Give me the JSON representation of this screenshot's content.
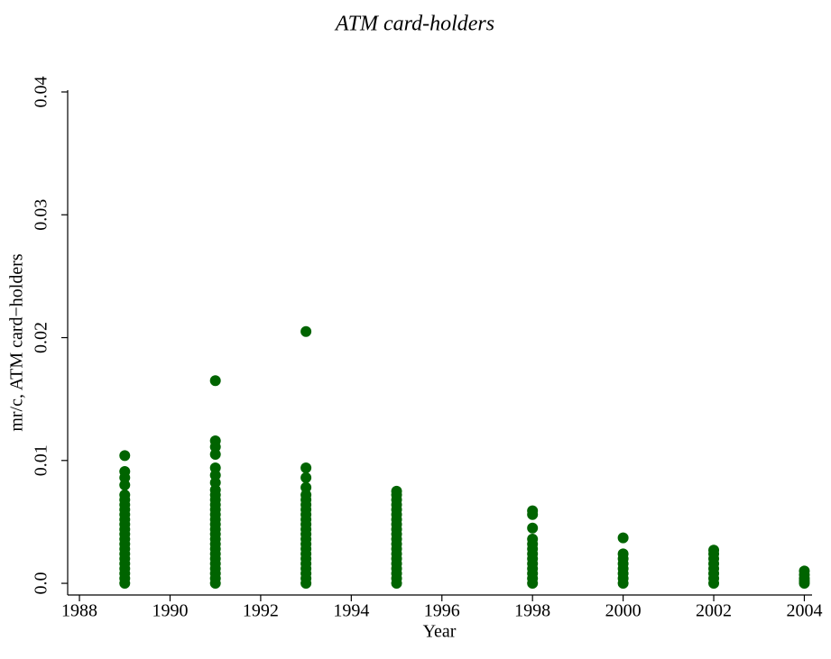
{
  "chart_data": {
    "type": "scatter",
    "title": "ATM card-holders",
    "xlabel": "Year",
    "ylabel": "mr/c, ATM card−holders",
    "color": "#006400",
    "x": [
      1989,
      1989,
      1989,
      1989,
      1989,
      1989,
      1989,
      1989,
      1989,
      1989,
      1989,
      1989,
      1989,
      1989,
      1989,
      1989,
      1989,
      1989,
      1989,
      1989,
      1989,
      1989,
      1989,
      1991,
      1991,
      1991,
      1991,
      1991,
      1991,
      1991,
      1991,
      1991,
      1991,
      1991,
      1991,
      1991,
      1991,
      1991,
      1991,
      1991,
      1991,
      1991,
      1991,
      1991,
      1991,
      1991,
      1991,
      1991,
      1991,
      1991,
      1993,
      1993,
      1993,
      1993,
      1993,
      1993,
      1993,
      1993,
      1993,
      1993,
      1993,
      1993,
      1993,
      1993,
      1993,
      1993,
      1993,
      1993,
      1993,
      1993,
      1993,
      1993,
      1993,
      1995,
      1995,
      1995,
      1995,
      1995,
      1995,
      1995,
      1995,
      1995,
      1995,
      1995,
      1995,
      1995,
      1995,
      1995,
      1995,
      1995,
      1995,
      1995,
      1995,
      1998,
      1998,
      1998,
      1998,
      1998,
      1998,
      1998,
      1998,
      1998,
      1998,
      1998,
      1998,
      1998,
      2000,
      2000,
      2000,
      2000,
      2000,
      2000,
      2000,
      2000,
      2002,
      2002,
      2002,
      2002,
      2002,
      2002,
      2002,
      2002,
      2004,
      2004,
      2004,
      2004,
      2004
    ],
    "values": [
      0,
      0.0004,
      0.0008,
      0.0012,
      0.0016,
      0.002,
      0.0024,
      0.0028,
      0.0032,
      0.0036,
      0.004,
      0.0044,
      0.0048,
      0.0052,
      0.0056,
      0.006,
      0.0064,
      0.0068,
      0.0072,
      0.008,
      0.0086,
      0.0091,
      0.0104,
      0,
      0.0004,
      0.0008,
      0.0012,
      0.0016,
      0.002,
      0.0024,
      0.0028,
      0.0032,
      0.0036,
      0.004,
      0.0044,
      0.0048,
      0.0052,
      0.0056,
      0.006,
      0.0064,
      0.0068,
      0.0072,
      0.0076,
      0.0082,
      0.0088,
      0.0094,
      0.0105,
      0.0111,
      0.0116,
      0.0165,
      0,
      0.0004,
      0.0008,
      0.0012,
      0.0016,
      0.002,
      0.0024,
      0.0028,
      0.0032,
      0.0036,
      0.004,
      0.0044,
      0.0048,
      0.0052,
      0.0056,
      0.006,
      0.0064,
      0.0068,
      0.0072,
      0.0078,
      0.0086,
      0.0094,
      0.0205,
      0,
      0.0004,
      0.0008,
      0.0012,
      0.0016,
      0.002,
      0.0024,
      0.0028,
      0.0032,
      0.0036,
      0.004,
      0.0044,
      0.0048,
      0.0052,
      0.0056,
      0.006,
      0.0064,
      0.0068,
      0.0072,
      0.0075,
      0,
      0.0004,
      0.0008,
      0.0012,
      0.0016,
      0.002,
      0.0024,
      0.0028,
      0.0032,
      0.0036,
      0.0045,
      0.0056,
      0.0059,
      0,
      0.0004,
      0.0008,
      0.0012,
      0.0016,
      0.002,
      0.0024,
      0.0037,
      0,
      0.0004,
      0.0008,
      0.0012,
      0.0016,
      0.002,
      0.0024,
      0.0027,
      0,
      0.0002,
      0.0004,
      0.0007,
      0.001
    ],
    "xlim": [
      1987.74,
      2004.17
    ],
    "ylim": [
      -0.00095,
      0.04
    ],
    "xticks": [
      1988,
      1990,
      1992,
      1994,
      1996,
      1998,
      2000,
      2002,
      2004
    ],
    "yticks": [
      {
        "value": 0,
        "label": "0.0"
      },
      0.01,
      0.02,
      0.03,
      0.04
    ]
  }
}
